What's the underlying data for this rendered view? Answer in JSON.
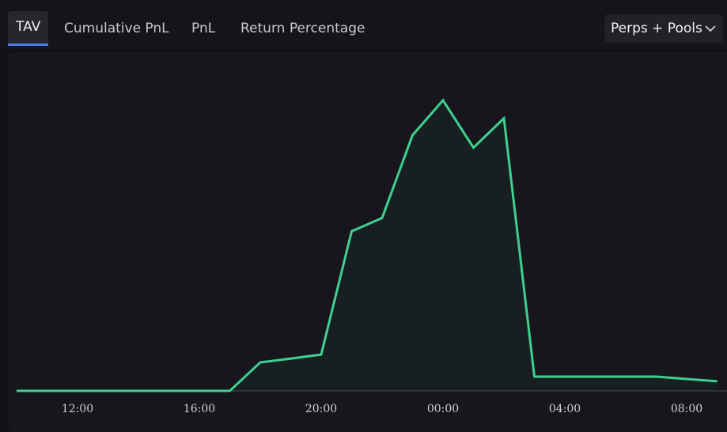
{
  "tabs": [
    "TAV",
    "Cumulative PnL",
    "PnL",
    "Return Percentage"
  ],
  "dropdown": "Perps + Pools",
  "chart_data": {
    "type": "area",
    "categories": [
      null,
      null,
      "12:00",
      null,
      null,
      null,
      "16:00",
      null,
      null,
      null,
      "20:00",
      null,
      null,
      null,
      "00:00",
      null,
      null,
      null,
      "04:00",
      null,
      null,
      null,
      "08:00",
      null
    ],
    "series": [
      {
        "color": "#3fcf8e",
        "values": [
          0,
          0,
          0,
          0,
          0,
          0,
          0,
          0,
          9.8,
          11.1,
          12.5,
          54.9,
          59.5,
          88,
          100,
          83.7,
          93.8,
          4.9,
          4.9,
          4.9,
          4.9,
          4.9,
          4.1,
          3.3
        ]
      }
    ],
    "ylim": [
      0,
      116
    ]
  }
}
